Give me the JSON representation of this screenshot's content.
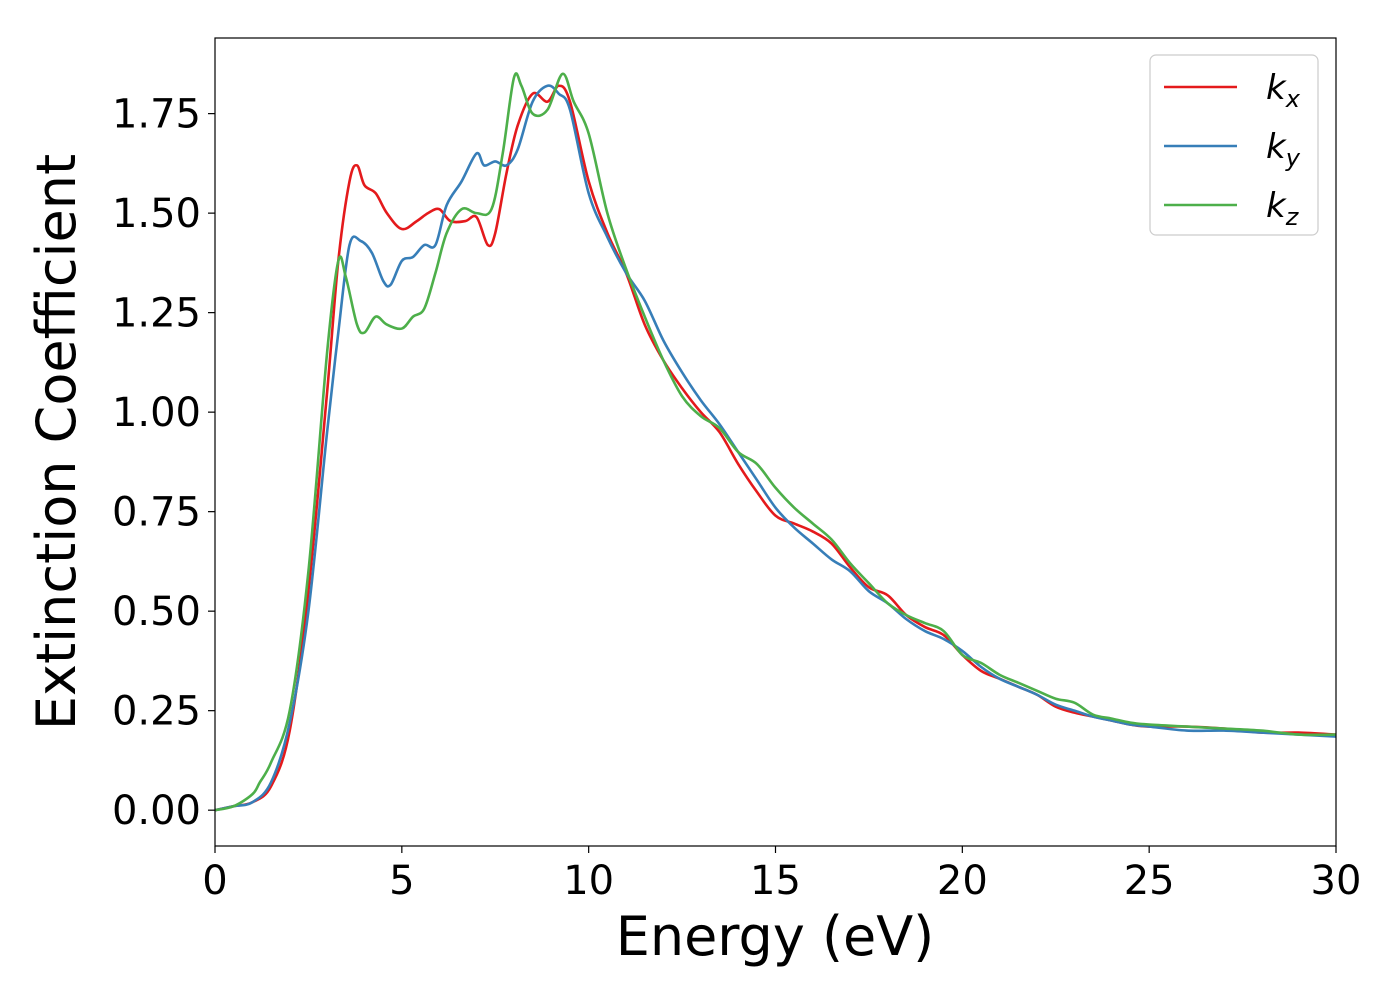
{
  "chart_data": {
    "type": "line",
    "xlabel": "Energy (eV)",
    "ylabel": "Extinction Coefficient",
    "xlim": [
      0,
      30
    ],
    "ylim": [
      -0.09,
      1.94
    ],
    "xticks": [
      0,
      5,
      10,
      15,
      20,
      25,
      30
    ],
    "xtick_labels": [
      "0",
      "5",
      "10",
      "15",
      "20",
      "25",
      "30"
    ],
    "yticks": [
      0.0,
      0.25,
      0.5,
      0.75,
      1.0,
      1.25,
      1.5,
      1.75
    ],
    "ytick_labels": [
      "0.00",
      "0.25",
      "0.50",
      "0.75",
      "1.00",
      "1.25",
      "1.50",
      "1.75"
    ],
    "grid": false,
    "legend_position": "top-right",
    "series": [
      {
        "name": "k_x",
        "label_base": "k",
        "label_sub": "x",
        "color": "#e41a1c",
        "x": [
          0,
          0.5,
          1.0,
          1.5,
          2.0,
          2.5,
          3.0,
          3.3,
          3.6,
          3.8,
          4.0,
          4.3,
          4.6,
          5.0,
          5.4,
          5.7,
          6.0,
          6.3,
          6.7,
          7.0,
          7.3,
          7.5,
          7.8,
          8.1,
          8.5,
          8.9,
          9.2,
          9.5,
          10.0,
          10.5,
          11.0,
          11.5,
          12.0,
          12.5,
          13.0,
          13.5,
          14.0,
          14.5,
          15.0,
          15.5,
          16.0,
          16.5,
          17.0,
          17.5,
          18.0,
          18.5,
          19.0,
          19.5,
          20.0,
          20.5,
          21.0,
          21.5,
          22.0,
          22.5,
          23.0,
          23.5,
          24.0,
          24.5,
          25.0,
          26.0,
          27.0,
          28.0,
          29.0,
          30.0
        ],
        "y": [
          0.0,
          0.01,
          0.02,
          0.06,
          0.2,
          0.55,
          1.05,
          1.38,
          1.58,
          1.62,
          1.57,
          1.55,
          1.5,
          1.46,
          1.48,
          1.5,
          1.51,
          1.48,
          1.48,
          1.49,
          1.42,
          1.45,
          1.6,
          1.72,
          1.8,
          1.78,
          1.82,
          1.78,
          1.58,
          1.45,
          1.35,
          1.22,
          1.13,
          1.06,
          1.0,
          0.95,
          0.87,
          0.8,
          0.74,
          0.72,
          0.7,
          0.67,
          0.61,
          0.56,
          0.54,
          0.49,
          0.46,
          0.44,
          0.39,
          0.35,
          0.33,
          0.31,
          0.29,
          0.26,
          0.245,
          0.235,
          0.225,
          0.215,
          0.21,
          0.21,
          0.205,
          0.195,
          0.195,
          0.19
        ]
      },
      {
        "name": "k_y",
        "label_base": "k",
        "label_sub": "y",
        "color": "#377eb8",
        "x": [
          0,
          0.5,
          1.0,
          1.5,
          2.0,
          2.5,
          3.0,
          3.3,
          3.6,
          3.9,
          4.2,
          4.5,
          4.7,
          5.0,
          5.3,
          5.6,
          5.9,
          6.2,
          6.6,
          7.0,
          7.2,
          7.5,
          7.8,
          8.1,
          8.5,
          8.9,
          9.2,
          9.5,
          10.0,
          10.5,
          11.0,
          11.5,
          12.0,
          12.5,
          13.0,
          13.5,
          14.0,
          14.5,
          15.0,
          15.5,
          16.0,
          16.5,
          17.0,
          17.5,
          18.0,
          18.5,
          19.0,
          19.5,
          20.0,
          20.5,
          21.0,
          21.5,
          22.0,
          22.5,
          23.0,
          23.5,
          24.0,
          24.5,
          25.0,
          26.0,
          27.0,
          28.0,
          29.0,
          30.0
        ],
        "y": [
          0.0,
          0.01,
          0.02,
          0.07,
          0.22,
          0.5,
          0.95,
          1.2,
          1.42,
          1.43,
          1.4,
          1.33,
          1.32,
          1.38,
          1.39,
          1.42,
          1.42,
          1.52,
          1.58,
          1.65,
          1.62,
          1.63,
          1.62,
          1.66,
          1.78,
          1.82,
          1.8,
          1.76,
          1.55,
          1.44,
          1.35,
          1.28,
          1.18,
          1.1,
          1.03,
          0.97,
          0.9,
          0.83,
          0.76,
          0.71,
          0.67,
          0.63,
          0.6,
          0.55,
          0.52,
          0.48,
          0.45,
          0.43,
          0.4,
          0.36,
          0.33,
          0.31,
          0.29,
          0.265,
          0.25,
          0.235,
          0.225,
          0.215,
          0.21,
          0.2,
          0.2,
          0.195,
          0.19,
          0.185
        ]
      },
      {
        "name": "k_z",
        "label_base": "k",
        "label_sub": "z",
        "color": "#4daf4a",
        "x": [
          0,
          0.5,
          1.0,
          1.2,
          1.5,
          2.0,
          2.5,
          3.0,
          3.3,
          3.5,
          3.8,
          4.0,
          4.3,
          4.6,
          5.0,
          5.3,
          5.6,
          5.9,
          6.2,
          6.6,
          7.0,
          7.4,
          7.7,
          8.0,
          8.2,
          8.5,
          8.9,
          9.3,
          9.6,
          10.0,
          10.5,
          11.0,
          11.5,
          12.0,
          12.5,
          13.0,
          13.5,
          14.0,
          14.5,
          15.0,
          15.5,
          16.0,
          16.5,
          17.0,
          17.5,
          18.0,
          18.5,
          19.0,
          19.5,
          20.0,
          20.5,
          21.0,
          21.5,
          22.0,
          22.5,
          23.0,
          23.5,
          24.0,
          24.5,
          25.0,
          26.0,
          27.0,
          28.0,
          29.0,
          30.0
        ],
        "y": [
          0.0,
          0.01,
          0.04,
          0.07,
          0.12,
          0.25,
          0.6,
          1.15,
          1.38,
          1.34,
          1.22,
          1.2,
          1.24,
          1.22,
          1.21,
          1.24,
          1.26,
          1.35,
          1.45,
          1.51,
          1.5,
          1.51,
          1.65,
          1.84,
          1.82,
          1.75,
          1.76,
          1.85,
          1.78,
          1.7,
          1.5,
          1.36,
          1.24,
          1.13,
          1.04,
          0.99,
          0.96,
          0.9,
          0.87,
          0.81,
          0.76,
          0.72,
          0.68,
          0.62,
          0.57,
          0.52,
          0.49,
          0.47,
          0.45,
          0.39,
          0.37,
          0.34,
          0.32,
          0.3,
          0.28,
          0.27,
          0.24,
          0.23,
          0.22,
          0.215,
          0.21,
          0.205,
          0.2,
          0.19,
          0.19
        ]
      }
    ]
  }
}
